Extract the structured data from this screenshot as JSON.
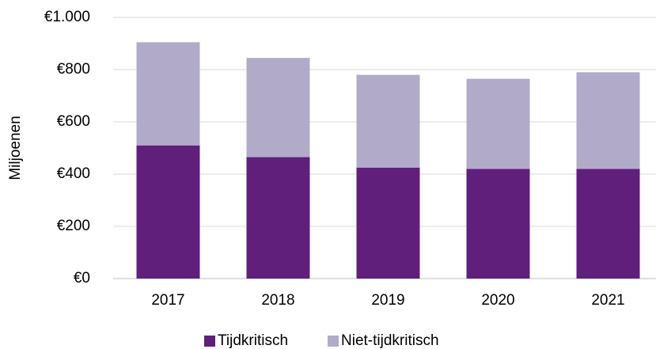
{
  "chart_data": {
    "type": "stacked_bar",
    "y_label": "Miljoenen",
    "categories": [
      "2017",
      "2018",
      "2019",
      "2020",
      "2021"
    ],
    "series": [
      {
        "name": "Tijdkritisch",
        "color": "#5f1f7a",
        "values": [
          510,
          465,
          425,
          420,
          420
        ]
      },
      {
        "name": "Niet-tijdkritisch",
        "color": "#b1abc9",
        "values": [
          395,
          380,
          355,
          345,
          370
        ]
      }
    ],
    "ylim": [
      0,
      1000
    ],
    "yticks": [
      {
        "value": 0,
        "label": "€0"
      },
      {
        "value": 200,
        "label": "€200"
      },
      {
        "value": 400,
        "label": "€400"
      },
      {
        "value": 600,
        "label": "€600"
      },
      {
        "value": 800,
        "label": "€800"
      },
      {
        "value": 1000,
        "label": "€1.000"
      }
    ],
    "grid": true,
    "legend": "bottom"
  }
}
